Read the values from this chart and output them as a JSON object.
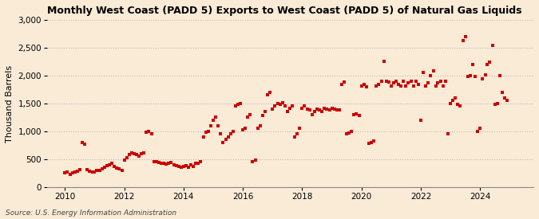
{
  "title": "Monthly West Coast (PADD 5) Exports to West Coast (PADD 5) of Natural Gas Liquids",
  "ylabel": "Thousand Barrels",
  "source": "Source: U.S. Energy Information Administration",
  "background_color": "#faebd7",
  "dot_color": "#cc0000",
  "grid_color": "#bbbbbb",
  "ylim": [
    0,
    3000
  ],
  "yticks": [
    0,
    500,
    1000,
    1500,
    2000,
    2500,
    3000
  ],
  "xticks": [
    2010,
    2012,
    2014,
    2016,
    2018,
    2020,
    2022,
    2024
  ],
  "xlim_left": 2009.4,
  "xlim_right": 2025.8,
  "data": [
    [
      2010.0,
      248
    ],
    [
      2010.08,
      265
    ],
    [
      2010.17,
      220
    ],
    [
      2010.25,
      255
    ],
    [
      2010.33,
      270
    ],
    [
      2010.42,
      285
    ],
    [
      2010.5,
      310
    ],
    [
      2010.58,
      800
    ],
    [
      2010.67,
      770
    ],
    [
      2010.75,
      310
    ],
    [
      2010.83,
      280
    ],
    [
      2010.92,
      260
    ],
    [
      2011.0,
      270
    ],
    [
      2011.08,
      290
    ],
    [
      2011.17,
      300
    ],
    [
      2011.25,
      320
    ],
    [
      2011.33,
      350
    ],
    [
      2011.42,
      380
    ],
    [
      2011.5,
      400
    ],
    [
      2011.58,
      420
    ],
    [
      2011.67,
      370
    ],
    [
      2011.75,
      340
    ],
    [
      2011.83,
      320
    ],
    [
      2011.92,
      300
    ],
    [
      2012.0,
      480
    ],
    [
      2012.08,
      520
    ],
    [
      2012.17,
      580
    ],
    [
      2012.25,
      610
    ],
    [
      2012.33,
      600
    ],
    [
      2012.42,
      580
    ],
    [
      2012.5,
      560
    ],
    [
      2012.58,
      590
    ],
    [
      2012.67,
      610
    ],
    [
      2012.75,
      980
    ],
    [
      2012.83,
      1000
    ],
    [
      2012.92,
      960
    ],
    [
      2013.0,
      450
    ],
    [
      2013.08,
      460
    ],
    [
      2013.17,
      440
    ],
    [
      2013.25,
      430
    ],
    [
      2013.33,
      420
    ],
    [
      2013.42,
      410
    ],
    [
      2013.5,
      430
    ],
    [
      2013.58,
      440
    ],
    [
      2013.67,
      400
    ],
    [
      2013.75,
      380
    ],
    [
      2013.83,
      360
    ],
    [
      2013.92,
      350
    ],
    [
      2014.0,
      360
    ],
    [
      2014.08,
      380
    ],
    [
      2014.17,
      350
    ],
    [
      2014.25,
      400
    ],
    [
      2014.33,
      370
    ],
    [
      2014.42,
      420
    ],
    [
      2014.5,
      430
    ],
    [
      2014.58,
      460
    ],
    [
      2014.67,
      900
    ],
    [
      2014.75,
      980
    ],
    [
      2014.83,
      1000
    ],
    [
      2014.92,
      1100
    ],
    [
      2015.0,
      1200
    ],
    [
      2015.08,
      1250
    ],
    [
      2015.17,
      1100
    ],
    [
      2015.25,
      950
    ],
    [
      2015.33,
      800
    ],
    [
      2015.42,
      850
    ],
    [
      2015.5,
      900
    ],
    [
      2015.58,
      950
    ],
    [
      2015.67,
      1000
    ],
    [
      2015.75,
      1450
    ],
    [
      2015.83,
      1480
    ],
    [
      2015.92,
      1500
    ],
    [
      2016.0,
      1020
    ],
    [
      2016.08,
      1050
    ],
    [
      2016.17,
      1250
    ],
    [
      2016.25,
      1300
    ],
    [
      2016.33,
      460
    ],
    [
      2016.42,
      480
    ],
    [
      2016.5,
      1050
    ],
    [
      2016.58,
      1100
    ],
    [
      2016.67,
      1280
    ],
    [
      2016.75,
      1350
    ],
    [
      2016.83,
      1650
    ],
    [
      2016.92,
      1700
    ],
    [
      2017.0,
      1400
    ],
    [
      2017.08,
      1450
    ],
    [
      2017.17,
      1500
    ],
    [
      2017.25,
      1480
    ],
    [
      2017.33,
      1520
    ],
    [
      2017.42,
      1450
    ],
    [
      2017.5,
      1350
    ],
    [
      2017.58,
      1420
    ],
    [
      2017.67,
      1450
    ],
    [
      2017.75,
      900
    ],
    [
      2017.83,
      950
    ],
    [
      2017.92,
      1050
    ],
    [
      2018.0,
      1420
    ],
    [
      2018.08,
      1450
    ],
    [
      2018.17,
      1400
    ],
    [
      2018.25,
      1380
    ],
    [
      2018.33,
      1300
    ],
    [
      2018.42,
      1350
    ],
    [
      2018.5,
      1400
    ],
    [
      2018.58,
      1380
    ],
    [
      2018.67,
      1350
    ],
    [
      2018.75,
      1420
    ],
    [
      2018.83,
      1400
    ],
    [
      2018.92,
      1380
    ],
    [
      2019.0,
      1420
    ],
    [
      2019.08,
      1400
    ],
    [
      2019.17,
      1380
    ],
    [
      2019.25,
      1380
    ],
    [
      2019.33,
      1850
    ],
    [
      2019.42,
      1880
    ],
    [
      2019.5,
      950
    ],
    [
      2019.58,
      970
    ],
    [
      2019.67,
      1000
    ],
    [
      2019.75,
      1300
    ],
    [
      2019.83,
      1320
    ],
    [
      2019.92,
      1280
    ],
    [
      2020.0,
      1820
    ],
    [
      2020.08,
      1850
    ],
    [
      2020.17,
      1800
    ],
    [
      2020.25,
      780
    ],
    [
      2020.33,
      800
    ],
    [
      2020.42,
      820
    ],
    [
      2020.5,
      1820
    ],
    [
      2020.58,
      1850
    ],
    [
      2020.67,
      1900
    ],
    [
      2020.75,
      2260
    ],
    [
      2020.83,
      1900
    ],
    [
      2020.92,
      1880
    ],
    [
      2021.0,
      1820
    ],
    [
      2021.08,
      1870
    ],
    [
      2021.17,
      1900
    ],
    [
      2021.25,
      1850
    ],
    [
      2021.33,
      1820
    ],
    [
      2021.42,
      1900
    ],
    [
      2021.5,
      1820
    ],
    [
      2021.58,
      1870
    ],
    [
      2021.67,
      1900
    ],
    [
      2021.75,
      1820
    ],
    [
      2021.83,
      1900
    ],
    [
      2021.92,
      1850
    ],
    [
      2022.0,
      1200
    ],
    [
      2022.08,
      2060
    ],
    [
      2022.17,
      1820
    ],
    [
      2022.25,
      1870
    ],
    [
      2022.33,
      2000
    ],
    [
      2022.42,
      2080
    ],
    [
      2022.5,
      1820
    ],
    [
      2022.58,
      1870
    ],
    [
      2022.67,
      1900
    ],
    [
      2022.75,
      1820
    ],
    [
      2022.83,
      1900
    ],
    [
      2022.92,
      950
    ],
    [
      2023.0,
      1500
    ],
    [
      2023.08,
      1550
    ],
    [
      2023.17,
      1600
    ],
    [
      2023.25,
      1480
    ],
    [
      2023.33,
      1450
    ],
    [
      2023.42,
      2630
    ],
    [
      2023.5,
      2700
    ],
    [
      2023.58,
      1980
    ],
    [
      2023.67,
      2000
    ],
    [
      2023.75,
      2200
    ],
    [
      2023.83,
      1980
    ],
    [
      2023.92,
      1000
    ],
    [
      2024.0,
      1050
    ],
    [
      2024.08,
      1950
    ],
    [
      2024.17,
      2020
    ],
    [
      2024.25,
      2200
    ],
    [
      2024.33,
      2250
    ],
    [
      2024.42,
      2550
    ],
    [
      2024.5,
      1480
    ],
    [
      2024.58,
      1500
    ],
    [
      2024.67,
      2000
    ],
    [
      2024.75,
      1700
    ],
    [
      2024.83,
      1600
    ],
    [
      2024.92,
      1550
    ]
  ]
}
